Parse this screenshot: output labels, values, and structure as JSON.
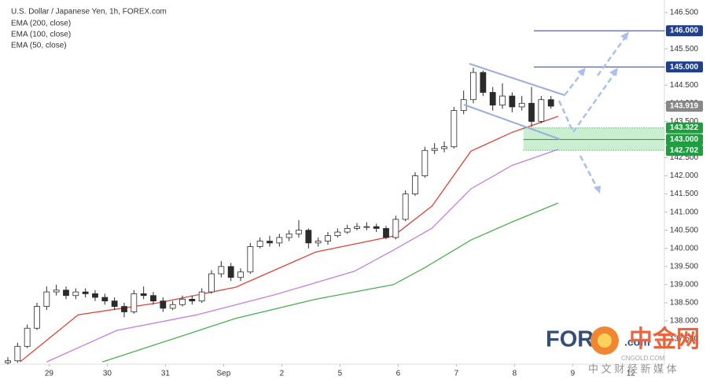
{
  "chart_data": {
    "type": "candlestick",
    "title": "U.S. Dollar / Japanese Yen, 1h, FOREX.com",
    "indicators": [
      "EMA (200, close)",
      "EMA (100, close)",
      "EMA (50, close)"
    ],
    "xlim": [
      -3.24,
      270.8
    ],
    "ylim": [
      136.808,
      146.847
    ],
    "xticks": [
      {
        "value": 17,
        "label": "29"
      },
      {
        "value": 41,
        "label": "30"
      },
      {
        "value": 65,
        "label": "31"
      },
      {
        "value": 89,
        "label": "Sep"
      },
      {
        "value": 113,
        "label": "2"
      },
      {
        "value": 137,
        "label": "5"
      },
      {
        "value": 161,
        "label": "6"
      },
      {
        "value": 185,
        "label": "7"
      },
      {
        "value": 209,
        "label": "8"
      },
      {
        "value": 233,
        "label": "9"
      },
      {
        "value": 257,
        "label": "12"
      }
    ],
    "yticks": [
      {
        "value": 137.5,
        "label": "137.500"
      },
      {
        "value": 138,
        "label": "138.000"
      },
      {
        "value": 138.5,
        "label": "138.500"
      },
      {
        "value": 139,
        "label": "139.000"
      },
      {
        "value": 139.5,
        "label": "139.500"
      },
      {
        "value": 140,
        "label": "140.000"
      },
      {
        "value": 140.5,
        "label": "140.500"
      },
      {
        "value": 141,
        "label": "141.000"
      },
      {
        "value": 141.5,
        "label": "141.500"
      },
      {
        "value": 142,
        "label": "142.000"
      },
      {
        "value": 142.5,
        "label": "142.500"
      },
      {
        "value": 143,
        "label": "143.000"
      },
      {
        "value": 143.5,
        "label": "143.500"
      },
      {
        "value": 144,
        "label": "144.000"
      },
      {
        "value": 144.5,
        "label": "144.500"
      },
      {
        "value": 145,
        "label": "145.000"
      },
      {
        "value": 145.5,
        "label": "145.500"
      },
      {
        "value": 146,
        "label": "146.000"
      },
      {
        "value": 146.5,
        "label": "146.500"
      }
    ],
    "grid": false,
    "candles": {
      "up_color": "#ffffff",
      "down_color": "#2b2b2b",
      "edge_color": "#2b2b2b",
      "x": [
        0,
        4,
        8,
        12,
        16,
        20,
        24,
        28,
        32,
        36,
        40,
        44,
        48,
        52,
        56,
        60,
        64,
        68,
        72,
        76,
        80,
        84,
        88,
        92,
        96,
        100,
        104,
        108,
        112,
        116,
        120,
        124,
        128,
        132,
        136,
        140,
        144,
        148,
        152,
        156,
        160,
        164,
        168,
        172,
        176,
        180,
        184,
        188,
        192,
        196,
        200,
        204,
        208,
        212,
        216,
        220,
        224
      ],
      "open": [
        136.85,
        136.9,
        137.3,
        137.8,
        138.4,
        138.8,
        138.85,
        138.7,
        138.8,
        138.75,
        138.65,
        138.55,
        138.4,
        138.25,
        138.75,
        138.7,
        138.55,
        138.35,
        138.45,
        138.6,
        138.55,
        138.8,
        139.3,
        139.5,
        139.2,
        139.35,
        140.05,
        140.2,
        140.15,
        140.3,
        140.4,
        140.5,
        140.15,
        140.2,
        140.35,
        140.45,
        140.55,
        140.6,
        140.6,
        140.55,
        140.3,
        140.8,
        141.5,
        142.0,
        142.7,
        142.75,
        142.8,
        143.8,
        144.1,
        144.85,
        144.3,
        143.95,
        144.2,
        143.9,
        144.0,
        143.5,
        144.1
      ],
      "high": [
        137.0,
        137.4,
        137.9,
        138.5,
        138.95,
        139.0,
        138.95,
        138.9,
        138.9,
        138.85,
        138.75,
        138.65,
        138.5,
        138.85,
        138.95,
        138.8,
        138.65,
        138.55,
        138.7,
        138.7,
        138.9,
        139.4,
        139.65,
        139.6,
        139.45,
        140.15,
        140.3,
        140.35,
        140.4,
        140.5,
        140.78,
        140.55,
        140.3,
        140.45,
        140.55,
        140.65,
        140.7,
        140.72,
        140.68,
        140.62,
        140.9,
        141.6,
        142.1,
        142.8,
        142.9,
        142.95,
        143.9,
        144.35,
        144.98,
        144.9,
        144.45,
        144.55,
        144.3,
        144.2,
        144.45,
        144.2,
        144.2
      ],
      "low": [
        136.8,
        136.85,
        137.25,
        137.75,
        138.3,
        138.7,
        138.6,
        138.6,
        138.65,
        138.55,
        138.45,
        138.3,
        138.1,
        138.2,
        138.6,
        138.45,
        138.25,
        138.3,
        138.4,
        138.45,
        138.5,
        138.75,
        139.2,
        139.1,
        139.1,
        139.3,
        140.0,
        140.05,
        140.05,
        140.2,
        140.3,
        140.0,
        140.05,
        140.1,
        140.3,
        140.4,
        140.5,
        140.5,
        140.45,
        140.25,
        140.25,
        140.75,
        141.45,
        141.95,
        142.6,
        142.65,
        142.75,
        143.7,
        144.0,
        144.2,
        143.8,
        143.85,
        143.75,
        143.8,
        143.35,
        143.45,
        143.85
      ],
      "close": [
        136.9,
        137.3,
        137.8,
        138.4,
        138.8,
        138.85,
        138.7,
        138.8,
        138.75,
        138.65,
        138.55,
        138.4,
        138.25,
        138.75,
        138.7,
        138.55,
        138.35,
        138.45,
        138.6,
        138.55,
        138.8,
        139.3,
        139.5,
        139.2,
        139.35,
        140.05,
        140.2,
        140.15,
        140.3,
        140.4,
        140.5,
        140.15,
        140.2,
        140.35,
        140.45,
        140.55,
        140.6,
        140.6,
        140.55,
        140.3,
        140.8,
        141.5,
        142.0,
        142.7,
        142.75,
        142.8,
        143.8,
        144.1,
        144.85,
        144.3,
        143.95,
        144.2,
        143.9,
        144.0,
        143.5,
        144.1,
        143.92
      ]
    },
    "series": [
      {
        "name": "EMA (200, close)",
        "color": "#4caf50",
        "x": [
          39,
          94,
          127,
          159,
          172,
          191,
          208,
          227
        ],
        "values": [
          136.87,
          138.07,
          138.6,
          139.0,
          139.47,
          140.23,
          140.73,
          141.25
        ]
      },
      {
        "name": "EMA (100, close)",
        "color": "#c77ee0",
        "x": [
          16,
          45,
          78,
          110,
          143,
          159,
          175,
          191,
          208,
          227
        ],
        "values": [
          136.87,
          137.74,
          138.17,
          138.72,
          139.37,
          139.95,
          140.56,
          141.64,
          142.29,
          142.73
        ]
      },
      {
        "name": "EMA (50, close)",
        "color": "#e0453a",
        "x": [
          5,
          29,
          62,
          94,
          127,
          159,
          175,
          191,
          208,
          227
        ],
        "values": [
          136.87,
          138.17,
          138.5,
          138.93,
          139.9,
          140.34,
          141.17,
          142.68,
          143.2,
          143.64
        ]
      }
    ],
    "levels": [
      {
        "value": 146,
        "label": "146.000",
        "color": "#1f3f8f"
      },
      {
        "value": 145,
        "label": "145.000",
        "color": "#1f3f8f"
      },
      {
        "value": 143.919,
        "label": "143.919",
        "color": "#888888"
      },
      {
        "value": 143.322,
        "label": "143.322",
        "color": "#1e9e3e"
      },
      {
        "value": 143,
        "label": "143.000",
        "color": "#1e9e3e"
      },
      {
        "value": 142.702,
        "label": "142.702",
        "color": "#1e9e3e"
      }
    ],
    "zone": {
      "from": 142.702,
      "to": 143.322,
      "color": "#b7eac0"
    },
    "watermark": {
      "brand": "FOR",
      "suffix": ".com",
      "site": "中金网",
      "site_url": "CNGOLD.COM",
      "slogan": "中 文 财 经 新 媒 体"
    }
  }
}
